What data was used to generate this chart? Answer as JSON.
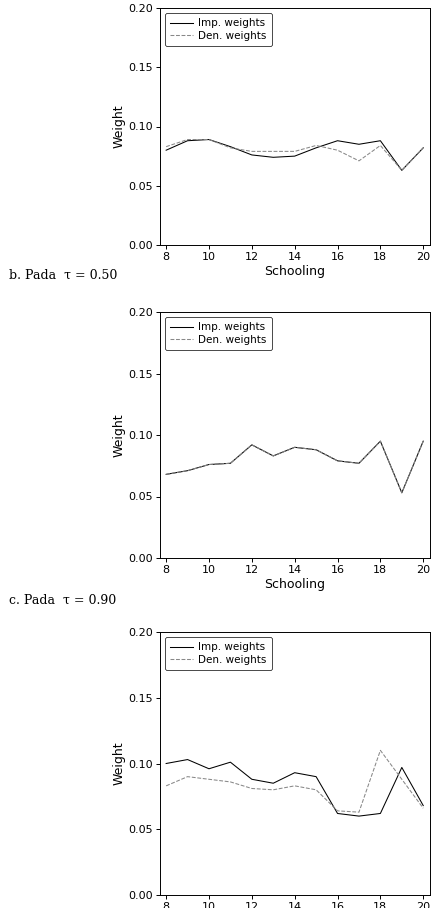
{
  "x": [
    8,
    9,
    10,
    11,
    12,
    13,
    14,
    15,
    16,
    17,
    18,
    19,
    20
  ],
  "plot1": {
    "imp": [
      0.08,
      0.088,
      0.089,
      0.083,
      0.076,
      0.074,
      0.075,
      0.082,
      0.088,
      0.085,
      0.088,
      0.063,
      0.082
    ],
    "den": [
      0.083,
      0.089,
      0.089,
      0.082,
      0.079,
      0.079,
      0.079,
      0.084,
      0.08,
      0.071,
      0.084,
      0.063,
      0.082
    ],
    "ylim": [
      0.0,
      0.2
    ],
    "yticks": [
      0.0,
      0.05,
      0.1,
      0.15,
      0.2
    ]
  },
  "plot2": {
    "imp": [
      0.068,
      0.071,
      0.076,
      0.077,
      0.092,
      0.083,
      0.09,
      0.088,
      0.079,
      0.077,
      0.095,
      0.053,
      0.095
    ],
    "den": [
      0.068,
      0.071,
      0.076,
      0.077,
      0.092,
      0.083,
      0.09,
      0.088,
      0.079,
      0.077,
      0.095,
      0.053,
      0.095
    ],
    "ylim": [
      0.0,
      0.2
    ],
    "yticks": [
      0.0,
      0.05,
      0.1,
      0.15,
      0.2
    ]
  },
  "plot3": {
    "imp": [
      0.1,
      0.103,
      0.096,
      0.101,
      0.088,
      0.085,
      0.093,
      0.09,
      0.062,
      0.06,
      0.062,
      0.097,
      0.068
    ],
    "den": [
      0.083,
      0.09,
      0.088,
      0.086,
      0.081,
      0.08,
      0.083,
      0.08,
      0.064,
      0.063,
      0.11,
      0.088,
      0.066
    ],
    "ylim": [
      0.0,
      0.2
    ],
    "yticks": [
      0.0,
      0.05,
      0.1,
      0.15,
      0.2
    ]
  },
  "labels": {
    "b_title": "b. Pada  τ = 0.50",
    "c_title": "c. Pada  τ = 0.90",
    "xlabel": "Schooling",
    "ylabel": "Weight",
    "imp_label": "Imp. weights",
    "den_label": "Den. weights"
  },
  "colors": {
    "imp": "#000000",
    "den": "#888888",
    "background": "#ffffff"
  },
  "xticks": [
    8,
    10,
    12,
    14,
    16,
    18,
    20
  ],
  "fontsize": 8
}
